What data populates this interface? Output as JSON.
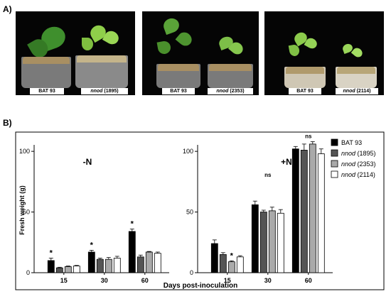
{
  "panels": {
    "a_label": "A)",
    "b_label": "B)"
  },
  "photos": [
    {
      "left_label": "BAT 93",
      "right_genotype": "nnod",
      "right_line": "(1895)"
    },
    {
      "left_label": "BAT 93",
      "right_genotype": "nnod",
      "right_line": "(2353)"
    },
    {
      "left_label": "BAT 93",
      "right_genotype": "nnod",
      "right_line": "(2114)"
    }
  ],
  "chart_data": {
    "type": "bar",
    "ylabel": "Fresh weight (g)",
    "xlabel": "Days post-inoculation",
    "ylim": [
      0,
      110
    ],
    "yticks": [
      0,
      50,
      100
    ],
    "categories": [
      "15",
      "30",
      "60"
    ],
    "legend": [
      {
        "name": "BAT 93",
        "color": "#000000"
      },
      {
        "name_italic": "nnod",
        "name_rest": "(1895)",
        "color": "#555555"
      },
      {
        "name_italic": "nnod",
        "name_rest": "(2353)",
        "color": "#aaaaaa"
      },
      {
        "name_italic": "nnod",
        "name_rest": "(2114)",
        "color": "#ffffff"
      }
    ],
    "subplots": [
      {
        "title": "-N",
        "series": [
          {
            "values": [
              10,
              17,
              34
            ],
            "errors": [
              2,
              1.5,
              2
            ]
          },
          {
            "values": [
              4,
              11,
              13
            ],
            "errors": [
              0.5,
              1,
              1.5
            ]
          },
          {
            "values": [
              5,
              11,
              17
            ],
            "errors": [
              0.5,
              1.5,
              0.5
            ]
          },
          {
            "values": [
              5.5,
              12,
              16
            ],
            "errors": [
              0.5,
              1.5,
              1
            ]
          }
        ],
        "annotations": [
          {
            "category": 0,
            "text": "*"
          },
          {
            "category": 1,
            "text": "*"
          },
          {
            "category": 2,
            "text": "*"
          }
        ]
      },
      {
        "title": "+N",
        "series": [
          {
            "values": [
              24,
              56,
              102
            ],
            "errors": [
              3,
              3,
              2
            ]
          },
          {
            "values": [
              15,
              50,
              101
            ],
            "errors": [
              1.5,
              1.5,
              5
            ]
          },
          {
            "values": [
              9,
              51,
              106
            ],
            "errors": [
              0.8,
              3,
              2
            ]
          },
          {
            "values": [
              13,
              49,
              98
            ],
            "errors": [
              1,
              3,
              4
            ]
          }
        ],
        "annotations": [
          {
            "category": 0,
            "series": 2,
            "text": "*"
          },
          {
            "category": 1,
            "text": "ns"
          },
          {
            "category": 2,
            "text": "ns"
          }
        ]
      }
    ]
  }
}
